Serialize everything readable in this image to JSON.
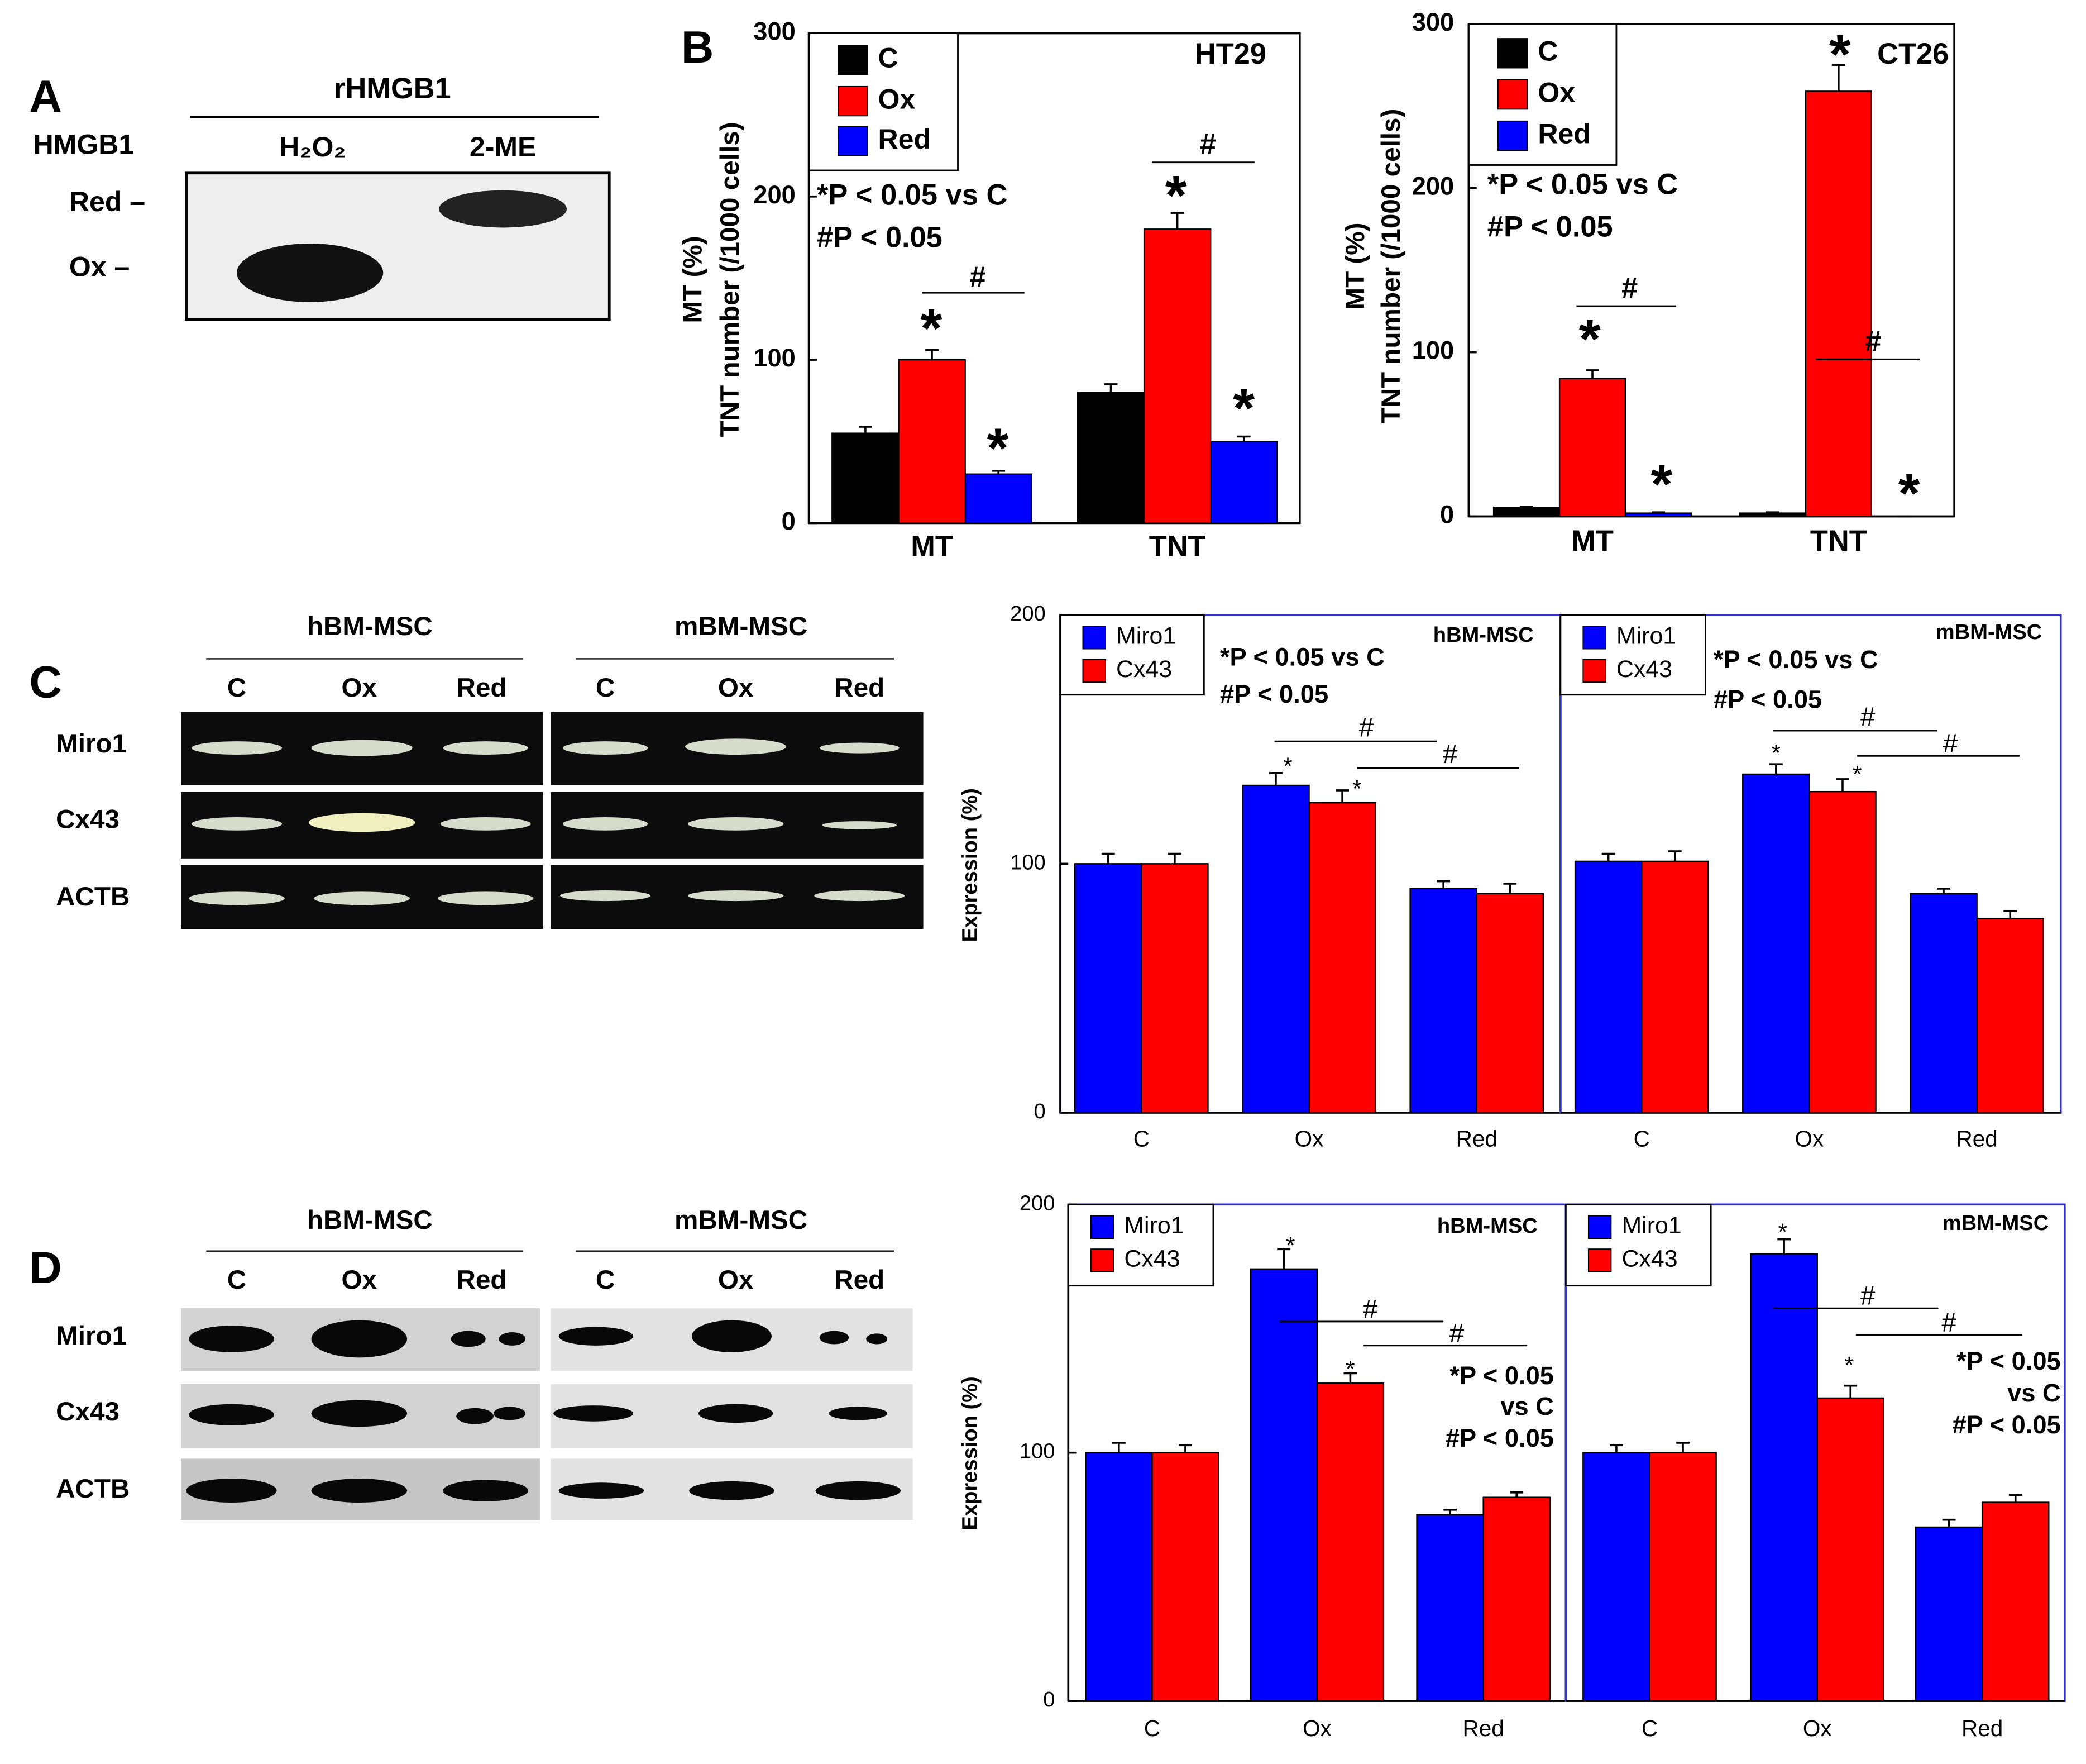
{
  "blots": {
    "A": {
      "panel_label": "A",
      "header": "rHMGB1",
      "row_header": "HMGB1",
      "lanes": [
        "H₂O₂",
        "2-ME"
      ],
      "rows": [
        "Red –",
        "Ox –"
      ]
    },
    "C": {
      "panel_label": "C",
      "groups": [
        "hBM-MSC",
        "mBM-MSC"
      ],
      "lanes": [
        "C",
        "Ox",
        "Red",
        "C",
        "Ox",
        "Red"
      ],
      "rows": [
        "Miro1",
        "Cx43",
        "ACTB"
      ]
    },
    "D": {
      "panel_label": "D",
      "groups": [
        "hBM-MSC",
        "mBM-MSC"
      ],
      "lanes": [
        "C",
        "Ox",
        "Red",
        "C",
        "Ox",
        "Red"
      ],
      "rows": [
        "Miro1",
        "Cx43",
        "ACTB"
      ]
    }
  },
  "chart_data": [
    {
      "type": "bar",
      "panel_label": "B",
      "title": "HT29",
      "ylabel": [
        "TNT number (/1000 cells)",
        "MT (%)"
      ],
      "categories": [
        "MT",
        "TNT"
      ],
      "series": [
        {
          "name": "C",
          "color": "#000000",
          "values": [
            55,
            80
          ],
          "errors": [
            4,
            5
          ]
        },
        {
          "name": "Ox",
          "color": "#ff0000",
          "values": [
            100,
            180
          ],
          "errors": [
            6,
            10
          ]
        },
        {
          "name": "Red",
          "color": "#0000ff",
          "values": [
            30,
            50
          ],
          "errors": [
            2,
            3
          ]
        }
      ],
      "ylim": [
        0,
        300
      ],
      "yticks": [
        0,
        100,
        200,
        300
      ],
      "annotations": [
        "*P < 0.05 vs C",
        "#P < 0.05",
        "*",
        "*",
        "*",
        "*",
        "#",
        "#"
      ]
    },
    {
      "type": "bar",
      "title": "CT26",
      "ylabel": [
        "TNT number (/1000 cells)",
        "MT (%)"
      ],
      "categories": [
        "MT",
        "TNT"
      ],
      "series": [
        {
          "name": "C",
          "color": "#000000",
          "values": [
            5.5,
            2
          ],
          "errors": [
            0.5,
            0.5
          ]
        },
        {
          "name": "Ox",
          "color": "#ff0000",
          "values": [
            84,
            259
          ],
          "errors": [
            5,
            16
          ]
        },
        {
          "name": "Red",
          "color": "#0000ff",
          "values": [
            2,
            0
          ],
          "errors": [
            0.5,
            0
          ]
        }
      ],
      "ylim": [
        0,
        300
      ],
      "yticks": [
        0,
        100,
        200,
        300
      ],
      "annotations": [
        "*P < 0.05 vs C",
        "#P < 0.05",
        "*",
        "*",
        "*",
        "*",
        "#",
        "#"
      ]
    },
    {
      "type": "bar",
      "title": "hBM-MSC",
      "ylabel": [
        "Expression (%)"
      ],
      "categories": [
        "C",
        "Ox",
        "Red"
      ],
      "series": [
        {
          "name": "Miro1",
          "color": "#0000ff",
          "values": [
            100,
            131.5,
            90
          ],
          "errors": [
            4,
            5,
            3
          ]
        },
        {
          "name": "Cx43",
          "color": "#ff0000",
          "values": [
            100,
            124.5,
            88
          ],
          "errors": [
            4,
            5,
            4
          ]
        }
      ],
      "ylim": [
        0,
        200
      ],
      "yticks": [
        0,
        100,
        200
      ],
      "annotations": [
        "*P < 0.05 vs C",
        "#P < 0.05",
        "*",
        "*",
        "#",
        "#"
      ]
    },
    {
      "type": "bar",
      "title": "mBM-MSC",
      "categories": [
        "C",
        "Ox",
        "Red"
      ],
      "series": [
        {
          "name": "Miro1",
          "color": "#0000ff",
          "values": [
            101,
            136,
            88
          ],
          "errors": [
            3,
            4,
            2
          ]
        },
        {
          "name": "Cx43",
          "color": "#ff0000",
          "values": [
            101,
            129,
            78
          ],
          "errors": [
            4,
            5,
            3
          ]
        }
      ],
      "ylim": [
        0,
        200
      ],
      "annotations": [
        "*P < 0.05 vs C",
        "#P < 0.05",
        "*",
        "*",
        "#",
        "#"
      ]
    },
    {
      "type": "bar",
      "title": "hBM-MSC",
      "ylabel": [
        "Expression (%)"
      ],
      "categories": [
        "C",
        "Ox",
        "Red"
      ],
      "series": [
        {
          "name": "Miro1",
          "color": "#0000ff",
          "values": [
            100,
            174,
            75
          ],
          "errors": [
            4,
            8,
            2
          ]
        },
        {
          "name": "Cx43",
          "color": "#ff0000",
          "values": [
            100,
            128,
            82
          ],
          "errors": [
            3,
            4,
            2
          ]
        }
      ],
      "ylim": [
        0,
        200
      ],
      "yticks": [
        0,
        100,
        200
      ],
      "annotations": [
        "*",
        "*",
        "#",
        "#",
        "*P < 0.05",
        "vs C",
        "#P < 0.05"
      ]
    },
    {
      "type": "bar",
      "title": "mBM-MSC",
      "categories": [
        "C",
        "Ox",
        "Red"
      ],
      "series": [
        {
          "name": "Miro1",
          "color": "#0000ff",
          "values": [
            100,
            180,
            70
          ],
          "errors": [
            3,
            6,
            3
          ]
        },
        {
          "name": "Cx43",
          "color": "#ff0000",
          "values": [
            100,
            122,
            80
          ],
          "errors": [
            4,
            5,
            3
          ]
        }
      ],
      "ylim": [
        0,
        200
      ],
      "annotations": [
        "*",
        "*",
        "#",
        "#",
        "*P < 0.05",
        "vs C",
        "#P < 0.05"
      ]
    }
  ]
}
